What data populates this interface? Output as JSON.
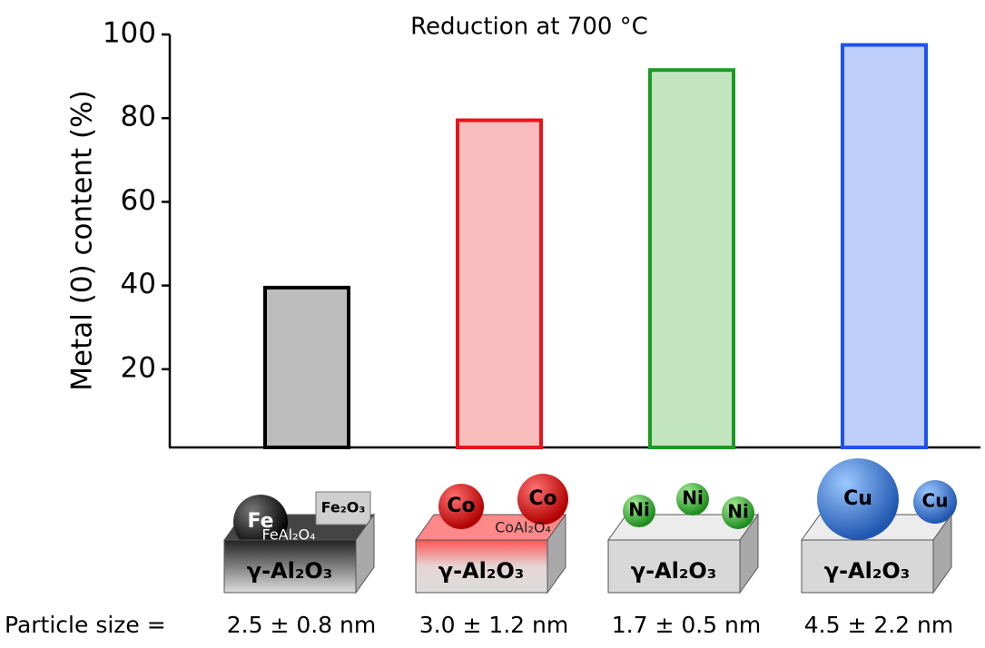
{
  "chart_data": {
    "type": "bar",
    "title": "Reduction at 700 °C",
    "y_label": "Metal (0) content (%)",
    "x_label": "Particle size =",
    "categories": [
      "2.5 ± 0.8 nm",
      "3.0 ± 1.2 nm",
      "1.7 ± 0.5 nm",
      "4.5 ± 2.2 nm"
    ],
    "values": [
      39.5,
      79.5,
      91.5,
      97.5
    ],
    "colors": [
      "#bdbdbd",
      "#f9bcbc",
      "#c2e5bf",
      "#bfcffb"
    ],
    "edge_colors": [
      "#000000",
      "#e8141b",
      "#1c9a22",
      "#1f52ea"
    ],
    "ylim": [
      0,
      100
    ],
    "yticks": [
      20,
      40,
      60,
      80,
      100
    ]
  },
  "illustrations": [
    {
      "labels": [
        "Fe",
        "Fe₂O₃",
        "FeAl₂O₄",
        "γ-Al₂O₃"
      ]
    },
    {
      "labels": [
        "Co",
        "Co",
        "CoAl₂O₄",
        "γ-Al₂O₃"
      ]
    },
    {
      "labels": [
        "Ni",
        "Ni",
        "Ni",
        "γ-Al₂O₃"
      ]
    },
    {
      "labels": [
        "Cu",
        "Cu",
        "γ-Al₂O₃"
      ]
    }
  ]
}
